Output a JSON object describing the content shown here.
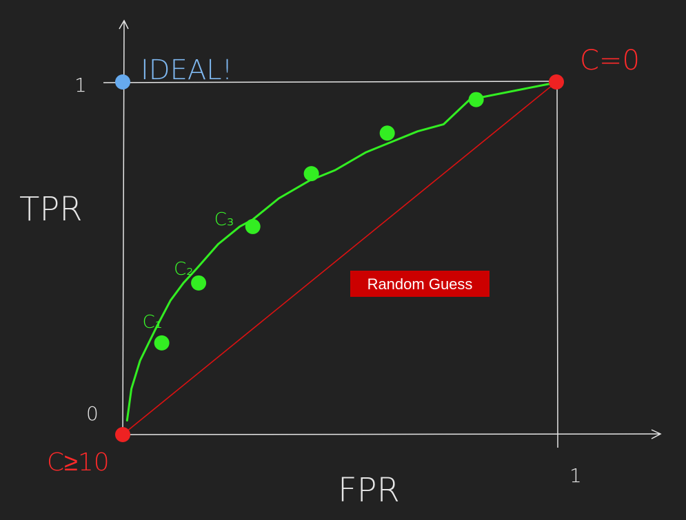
{
  "chart_data": {
    "type": "line",
    "xlabel": "FPR",
    "ylabel": "TPR",
    "xlim": [
      0,
      1
    ],
    "ylim": [
      0,
      1
    ],
    "x_ticks": [
      {
        "value": 1,
        "label": "1"
      }
    ],
    "y_ticks": [
      {
        "value": 0,
        "label": "0"
      },
      {
        "value": 1,
        "label": "1"
      }
    ],
    "grid": false,
    "legend": "none",
    "series": [
      {
        "kind": "roc-curve",
        "color": "#33ee22",
        "x": [
          0.01,
          0.02,
          0.04,
          0.06,
          0.08,
          0.11,
          0.14,
          0.17,
          0.22,
          0.27,
          0.3,
          0.36,
          0.43,
          0.49,
          0.56,
          0.62,
          0.68,
          0.74,
          0.8,
          0.985
        ],
        "y": [
          0.04,
          0.13,
          0.21,
          0.26,
          0.31,
          0.38,
          0.43,
          0.47,
          0.54,
          0.59,
          0.61,
          0.67,
          0.72,
          0.75,
          0.8,
          0.83,
          0.86,
          0.88,
          0.95,
          0.995
        ]
      },
      {
        "kind": "random-guess-diagonal",
        "color": "#dd1111",
        "x": [
          0,
          1
        ],
        "y": [
          0,
          1
        ]
      }
    ],
    "points": [
      {
        "x": 0.09,
        "y": 0.26,
        "color": "#33ee22",
        "label": "C₁"
      },
      {
        "x": 0.175,
        "y": 0.43,
        "color": "#33ee22",
        "label": "C₂"
      },
      {
        "x": 0.3,
        "y": 0.59,
        "color": "#33ee22",
        "label": "C₃"
      },
      {
        "x": 0.435,
        "y": 0.74,
        "color": "#33ee22",
        "label": ""
      },
      {
        "x": 0.61,
        "y": 0.855,
        "color": "#33ee22",
        "label": ""
      },
      {
        "x": 0.815,
        "y": 0.95,
        "color": "#33ee22",
        "label": ""
      },
      {
        "x": 0,
        "y": 1,
        "color": "#66aaee",
        "label": "IDEAL!"
      },
      {
        "x": 1,
        "y": 1,
        "color": "#ee2222",
        "label": "C=0"
      },
      {
        "x": 0,
        "y": 0,
        "color": "#ee2222",
        "label": "C≥10"
      }
    ],
    "annotations": [
      {
        "text": "Random Guess",
        "background": "#cc0000",
        "color": "#ffffff"
      }
    ]
  }
}
